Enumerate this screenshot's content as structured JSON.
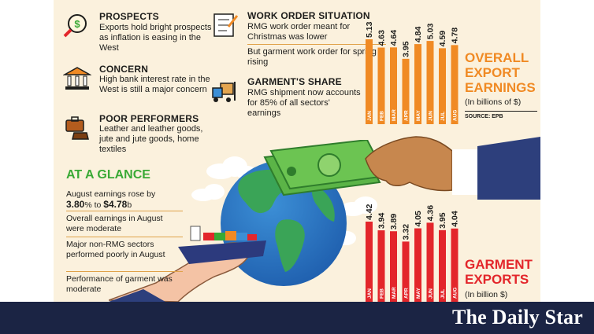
{
  "points": [
    {
      "id": "prospects",
      "title": "PROSPECTS",
      "text": "Exports hold bright prospects as inflation is easing in the West",
      "icon": "magnifier-dollar-icon"
    },
    {
      "id": "concern",
      "title": "CONCERN",
      "text": "High bank interest rate in the West is still a major concern",
      "icon": "bank-icon"
    },
    {
      "id": "poor",
      "title": "POOR PERFORMERS",
      "text": "Leather and leather goods, jute and jute goods, home textiles",
      "icon": "leather-goods-icon"
    },
    {
      "id": "work",
      "title": "WORK ORDER SITUATION",
      "text": "RMG work order meant for Christmas was lower",
      "text2": "But garment work order for spring is rising",
      "icon": "checklist-icon"
    },
    {
      "id": "share",
      "title": "GARMENT'S SHARE",
      "text": "RMG shipment now accounts for 85% of all sectors' earnings",
      "icon": "forklift-icon"
    }
  ],
  "glance": {
    "title": "AT A GLANCE",
    "items": [
      {
        "pre": "August earnings rose by",
        "pct": "3.80",
        "pct_unit": "%",
        "mid": " to ",
        "amt": "$4.78",
        "amt_unit": "b"
      },
      {
        "text": "Overall earnings in August were moderate"
      },
      {
        "text": "Major non-RMG sectors performed poorly in August"
      },
      {
        "text": "Performance of garment was moderate"
      }
    ]
  },
  "chart_data": [
    {
      "type": "bar",
      "title": "OVERALL EXPORT EARNINGS",
      "subtitle": "(In billions of $)",
      "source": "SOURCE: EPB",
      "categories": [
        "JAN",
        "FEB",
        "MAR",
        "APR",
        "MAY",
        "JUN",
        "JUL",
        "AUG"
      ],
      "values": [
        5.13,
        4.63,
        4.64,
        3.95,
        4.84,
        5.03,
        4.59,
        4.78
      ],
      "color": "#f08a24"
    },
    {
      "type": "bar",
      "title": "GARMENT EXPORTS",
      "subtitle": "(In billion $)",
      "categories": [
        "JAN",
        "FEB",
        "MAR",
        "APR",
        "MAY",
        "JUN",
        "JUL",
        "AUG"
      ],
      "values": [
        4.42,
        3.94,
        3.89,
        3.32,
        4.05,
        4.36,
        3.95,
        4.04
      ],
      "color": "#e3262b"
    }
  ],
  "colors": {
    "orange": "#f08a24",
    "red": "#e3262b",
    "green": "#39a935",
    "navy": "#1b2444",
    "panel": "#fbf1dd"
  },
  "brand": "The Daily Star"
}
